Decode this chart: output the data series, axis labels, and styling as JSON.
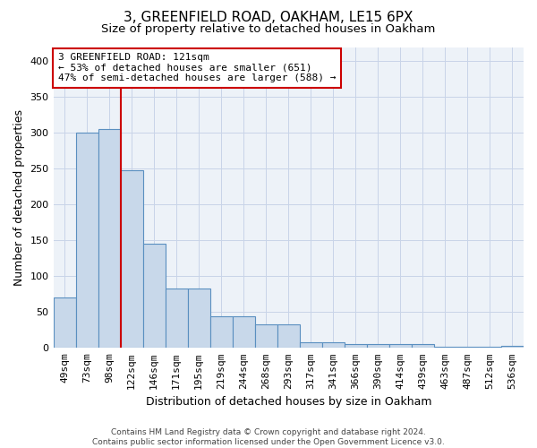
{
  "title": "3, GREENFIELD ROAD, OAKHAM, LE15 6PX",
  "subtitle": "Size of property relative to detached houses in Oakham",
  "xlabel": "Distribution of detached houses by size in Oakham",
  "ylabel": "Number of detached properties",
  "footnote": "Contains HM Land Registry data © Crown copyright and database right 2024.\nContains public sector information licensed under the Open Government Licence v3.0.",
  "bar_labels": [
    "49sqm",
    "73sqm",
    "98sqm",
    "122sqm",
    "146sqm",
    "171sqm",
    "195sqm",
    "219sqm",
    "244sqm",
    "268sqm",
    "293sqm",
    "317sqm",
    "341sqm",
    "366sqm",
    "390sqm",
    "414sqm",
    "439sqm",
    "463sqm",
    "487sqm",
    "512sqm",
    "536sqm"
  ],
  "bar_values": [
    70,
    300,
    305,
    248,
    145,
    83,
    83,
    44,
    44,
    33,
    33,
    8,
    8,
    5,
    5,
    5,
    5,
    2,
    2,
    2,
    3
  ],
  "bar_color": "#c8d8ea",
  "bar_edge_color": "#5a8fc0",
  "subject_line_index": 2.5,
  "subject_line_color": "#cc0000",
  "annotation_text": "3 GREENFIELD ROAD: 121sqm\n← 53% of detached houses are smaller (651)\n47% of semi-detached houses are larger (588) →",
  "annotation_box_edge_color": "#cc0000",
  "ylim": [
    0,
    420
  ],
  "yticks": [
    0,
    50,
    100,
    150,
    200,
    250,
    300,
    350,
    400
  ],
  "grid_color": "#c8d4e8",
  "background_color": "#edf2f8",
  "title_fontsize": 11,
  "subtitle_fontsize": 9.5,
  "ylabel_fontsize": 9,
  "xlabel_fontsize": 9,
  "tick_fontsize": 8,
  "annotation_fontsize": 8,
  "footnote_fontsize": 6.5
}
